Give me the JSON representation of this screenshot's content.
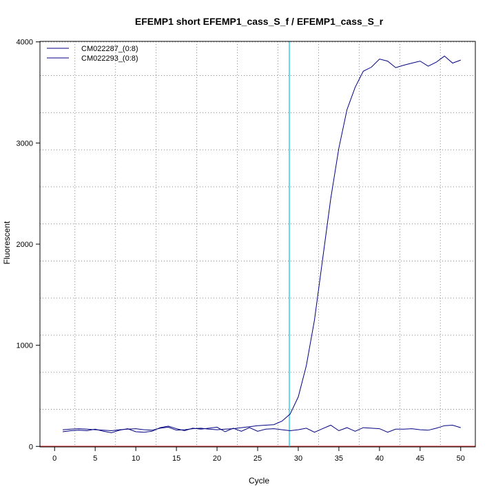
{
  "chart_data": {
    "type": "line",
    "title": "EFEMP1 short EFEMP1_cass_S_f / EFEMP1_cass_S_r",
    "xlabel": "Cycle",
    "ylabel": "Fluorescent",
    "xlim": [
      -1.8,
      51.8
    ],
    "ylim": [
      -5,
      4005
    ],
    "x_ticks": [
      0,
      5,
      10,
      15,
      20,
      25,
      30,
      35,
      40,
      45,
      50
    ],
    "y_ticks": [
      0,
      1000,
      2000,
      3000,
      4000
    ],
    "grid": true,
    "grid_x": [
      2.5,
      7.5,
      12.5,
      17.5,
      22.5,
      27.5,
      32.5,
      37.5,
      42.5,
      47.5
    ],
    "grid_y": [
      0,
      367,
      733,
      1100,
      1467,
      1833,
      2200,
      2567,
      2933,
      3300,
      3667,
      4000
    ],
    "threshold_cycle": 28.9,
    "threshold_color": "#33ccee",
    "baseline_color": "#cc3333",
    "legend_position": "top-left",
    "x": [
      1,
      2,
      3,
      4,
      5,
      6,
      7,
      8,
      9,
      10,
      11,
      12,
      13,
      14,
      15,
      16,
      17,
      18,
      19,
      20,
      21,
      22,
      23,
      24,
      25,
      26,
      27,
      28,
      29,
      30,
      31,
      32,
      33,
      34,
      35,
      36,
      37,
      38,
      39,
      40,
      41,
      42,
      43,
      44,
      45,
      46,
      47,
      48,
      49,
      50
    ],
    "series": [
      {
        "name": "CM022287_(0:8)",
        "color": "#000080",
        "values": [
          165,
          170,
          175,
          170,
          165,
          160,
          155,
          165,
          170,
          175,
          165,
          160,
          180,
          190,
          160,
          165,
          175,
          180,
          170,
          165,
          170,
          175,
          185,
          195,
          205,
          210,
          215,
          250,
          320,
          490,
          800,
          1250,
          1850,
          2450,
          2950,
          3330,
          3550,
          3710,
          3750,
          3830,
          3810,
          3745,
          3770,
          3790,
          3810,
          3760,
          3800,
          3860,
          3790,
          3820
        ]
      },
      {
        "name": "CM022293_(0:8)",
        "color": "#000080",
        "values": [
          145,
          155,
          160,
          155,
          170,
          150,
          135,
          160,
          175,
          145,
          140,
          150,
          185,
          200,
          175,
          155,
          180,
          170,
          180,
          190,
          145,
          180,
          150,
          185,
          150,
          170,
          175,
          165,
          155,
          165,
          180,
          140,
          175,
          210,
          155,
          185,
          150,
          185,
          180,
          175,
          140,
          170,
          170,
          175,
          165,
          160,
          180,
          205,
          210,
          185
        ]
      }
    ]
  }
}
